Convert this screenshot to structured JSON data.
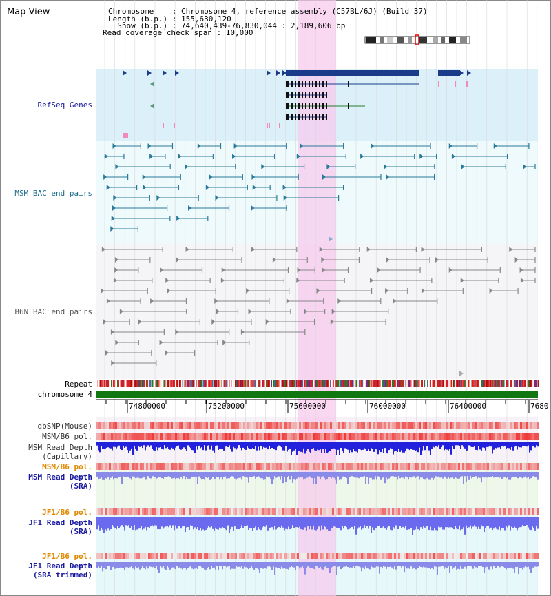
{
  "title": "Map View",
  "info": {
    "chromosome": "Chromosome    : Chromosome 4, reference assembly (C57BL/6J) (Build 37)",
    "length": "Length (b.p.) : 155,630,120",
    "show": "  Show (b.p.) : 74,640,439-76,830,044 : 2,189,606 bp",
    "read_coverage": "Read coverage check span : 10,000"
  },
  "tracks": {
    "refseq": "RefSeq Genes",
    "msm_bac": "MSM BAC end pairs",
    "b6n_bac": "B6N BAC end pairs",
    "repeat": "Repeat",
    "chromosome": "chromosome 4",
    "dbsnp": "dbSNP(Mouse)",
    "msm_b6_pol": "MSM/B6 pol.",
    "msm_depth_cap_1": "MSM Read Depth",
    "msm_depth_cap_2": "(Capillary)",
    "msm_b6_pol2": "MSM/B6 pol.",
    "msm_depth_sra_1": "MSM Read Depth",
    "msm_depth_sra_2": "(SRA)",
    "jf1_b6_pol": "JF1/B6 pol.",
    "jf1_depth_sra_1": "JF1 Read Depth",
    "jf1_depth_sra_2": "(SRA)",
    "jf1_b6_pol2": "JF1/B6 pol.",
    "jf1_depth_trim_1": "JF1 Read Depth",
    "jf1_depth_trim_2": "(SRA trimmed)"
  },
  "axis": {
    "ticks": [
      "74800000",
      "75200000",
      "75600000",
      "76000000",
      "76400000",
      "7680"
    ]
  },
  "colors": {
    "refseq_bg": "#dcf0fa",
    "msm_bac_bg": "#eefafc",
    "b6n_bg": "#f5f5f7",
    "highlight": "#f8c8ec",
    "gene": "#1a3a8a",
    "msm_bac": "#2a7a9a",
    "b6n_bac": "#888888",
    "chromosome": "#117711",
    "label_dark": "#000000",
    "label_blue": "#1a1aa0",
    "label_orange": "#e08a00"
  }
}
